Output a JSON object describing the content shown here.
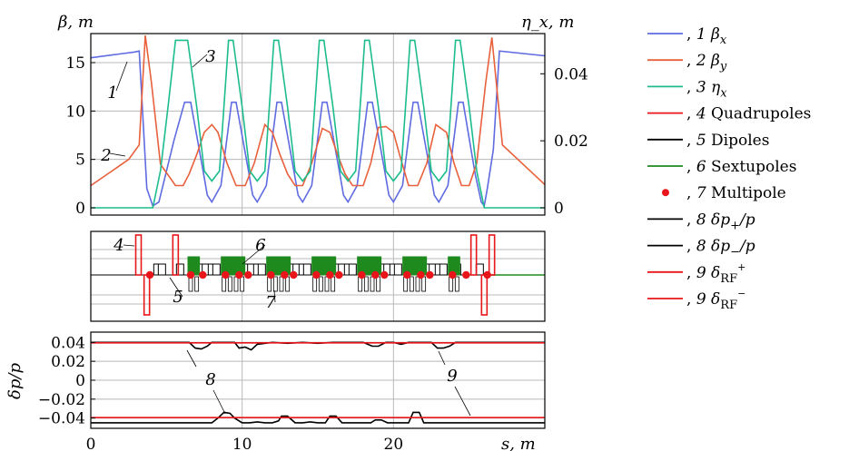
{
  "chart_data": [
    {
      "type": "line",
      "panel": "optics",
      "ylabel": "β, m",
      "y2label": "η_x, m",
      "xlim": [
        0,
        30
      ],
      "ylim": [
        0,
        18
      ],
      "y2lim": [
        0,
        0.052
      ],
      "yticks": [
        "0",
        "5",
        "10",
        "15"
      ],
      "y2ticks": [
        "0",
        "0.02",
        "0.04"
      ],
      "grid": true,
      "legend_position": "right",
      "annotations": [
        "1",
        "2",
        "3"
      ],
      "series": [
        {
          "name": "1 β_x",
          "legend_number": "1",
          "legend_symbol": "β",
          "legend_sub": "x",
          "color": "#5f6be0",
          "axis": "left",
          "x": [
            0,
            2.9,
            3.2,
            3.4,
            3.7,
            4.1,
            4.5,
            5.5,
            6.2,
            6.4,
            6.6,
            7.4,
            7.7,
            8.0,
            8.6,
            9.3,
            9.6,
            10.4,
            10.7,
            11.0,
            11.6,
            12.3,
            12.6,
            13.4,
            13.7,
            14.0,
            14.6,
            15.3,
            15.6,
            16.4,
            16.7,
            17.0,
            17.6,
            18.3,
            18.6,
            19.4,
            19.7,
            20.0,
            20.6,
            21.3,
            21.6,
            22.4,
            22.7,
            23.0,
            23.6,
            24.3,
            24.6,
            25.4,
            25.8,
            26.0,
            26.2,
            26.6,
            27.0,
            30
          ],
          "y": [
            15.5,
            16.1,
            16.2,
            10.5,
            2.0,
            0.2,
            0.6,
            7.0,
            10.9,
            10.9,
            10.9,
            4.0,
            1.3,
            0.6,
            2.3,
            10.9,
            10.9,
            4.0,
            1.3,
            0.6,
            2.3,
            10.9,
            10.9,
            4.0,
            1.3,
            0.6,
            2.3,
            10.9,
            10.9,
            4.0,
            1.3,
            0.6,
            2.3,
            10.9,
            10.9,
            4.0,
            1.3,
            0.6,
            2.3,
            10.9,
            10.9,
            4.0,
            1.3,
            0.6,
            2.3,
            10.9,
            10.9,
            3.5,
            0.6,
            0.2,
            2.0,
            6.0,
            16.2,
            15.7
          ]
        },
        {
          "name": "2 β_y",
          "legend_number": "2",
          "legend_symbol": "β",
          "legend_sub": "y",
          "color": "#e8603c",
          "axis": "left",
          "x": [
            0,
            2.5,
            3.2,
            3.6,
            4.0,
            4.6,
            5.6,
            6.1,
            6.5,
            7.0,
            7.5,
            8.0,
            8.4,
            9.0,
            9.6,
            10.2,
            10.8,
            11.5,
            12.0,
            12.5,
            13.0,
            13.5,
            14.0,
            14.6,
            15.3,
            15.8,
            16.3,
            16.8,
            17.3,
            18.0,
            18.5,
            19.0,
            19.5,
            20.0,
            20.4,
            21.0,
            21.6,
            22.2,
            22.8,
            23.5,
            24.0,
            24.5,
            25.0,
            25.5,
            26.1,
            26.5,
            27.2,
            30
          ],
          "y": [
            2.3,
            5.0,
            6.5,
            17.8,
            13.0,
            4.5,
            2.3,
            2.3,
            3.5,
            5.5,
            7.8,
            8.6,
            7.8,
            4.6,
            2.3,
            2.3,
            4.6,
            8.6,
            7.8,
            5.5,
            3.5,
            2.3,
            2.3,
            4.6,
            8.2,
            7.8,
            5.5,
            3.5,
            2.3,
            2.3,
            4.6,
            8.3,
            8.4,
            7.8,
            5.5,
            2.3,
            2.3,
            4.6,
            8.6,
            7.8,
            4.6,
            2.3,
            2.3,
            4.6,
            13.0,
            17.6,
            6.5,
            2.4
          ]
        },
        {
          "name": "3 η_x",
          "legend_number": "3",
          "legend_symbol": "η",
          "legend_sub": "x",
          "color": "#1cbc8c",
          "axis": "right",
          "x": [
            0,
            4.1,
            4.6,
            5.1,
            5.6,
            6.1,
            6.4,
            7.0,
            7.5,
            8.0,
            8.5,
            9.1,
            9.4,
            10.0,
            10.5,
            11.0,
            11.5,
            12.1,
            12.4,
            13.0,
            13.5,
            14.0,
            14.5,
            15.1,
            15.4,
            16.0,
            16.5,
            17.0,
            17.5,
            18.1,
            18.4,
            19.0,
            19.5,
            20.0,
            20.5,
            21.1,
            21.4,
            22.0,
            22.5,
            23.0,
            23.5,
            24.1,
            24.4,
            25.0,
            25.5,
            26.0,
            30
          ],
          "y": [
            0,
            0,
            0.011,
            0.03,
            0.05,
            0.05,
            0.05,
            0.03,
            0.011,
            0.008,
            0.011,
            0.05,
            0.05,
            0.03,
            0.011,
            0.008,
            0.011,
            0.05,
            0.05,
            0.03,
            0.011,
            0.008,
            0.011,
            0.05,
            0.05,
            0.03,
            0.011,
            0.008,
            0.011,
            0.05,
            0.05,
            0.03,
            0.011,
            0.008,
            0.011,
            0.05,
            0.05,
            0.03,
            0.011,
            0.008,
            0.011,
            0.05,
            0.05,
            0.03,
            0.011,
            0,
            0
          ]
        }
      ]
    },
    {
      "type": "lattice",
      "panel": "elements",
      "xlim": [
        0,
        30
      ],
      "annotations": [
        "4",
        "5",
        "6",
        "7"
      ],
      "legend": [
        {
          "number": "4",
          "label": "Quadrupoles",
          "color": "#e8161a"
        },
        {
          "number": "5",
          "label": "Dipoles",
          "color": "#000000"
        },
        {
          "number": "6",
          "label": "Sextupoles",
          "color": "#1e8a1e"
        },
        {
          "number": "7",
          "label": "Multipole",
          "color": "#e8161a",
          "marker": "dot"
        }
      ],
      "quadrupoles": [
        {
          "s": 3.15,
          "polarity": 1
        },
        {
          "s": 3.7,
          "polarity": -1
        },
        {
          "s": 5.6,
          "polarity": 1
        },
        {
          "s": 25.3,
          "polarity": 1
        },
        {
          "s": 26.5,
          "polarity": 1
        },
        {
          "s": 26.0,
          "polarity": -1
        }
      ],
      "dipoles": [
        4.4,
        4.7,
        5.9,
        7.0,
        7.3,
        7.6,
        8.0,
        8.3,
        10.0,
        10.3,
        10.6,
        11.0,
        11.3,
        12.1,
        13.0,
        13.3,
        13.6,
        14.0,
        14.3,
        15.2,
        16.0,
        16.3,
        16.6,
        17.0,
        17.3,
        18.2,
        19.0,
        19.3,
        19.6,
        20.0,
        20.3,
        21.2,
        22.0,
        22.3,
        22.6,
        23.0,
        23.3,
        24.2,
        25.7
      ],
      "sextupoles": [
        6.6,
        7.0,
        8.8,
        9.2,
        9.6,
        10.0,
        11.8,
        12.2,
        12.6,
        13.0,
        14.8,
        15.2,
        15.6,
        16.0,
        17.8,
        18.2,
        18.6,
        19.0,
        20.8,
        21.2,
        21.6,
        22.0,
        23.8,
        24.2
      ],
      "multipoles": [
        3.9,
        6.6,
        7.4,
        8.9,
        9.8,
        10.4,
        11.9,
        12.8,
        13.4,
        14.9,
        15.8,
        16.4,
        17.9,
        18.8,
        19.4,
        20.9,
        21.8,
        22.4,
        23.9,
        24.8,
        26.2
      ]
    },
    {
      "type": "line",
      "panel": "acceptance",
      "xlabel": "s, m",
      "ylabel": "δp/p",
      "xlim": [
        0,
        30
      ],
      "ylim": [
        -0.047,
        0.047
      ],
      "xticks": [
        "0",
        "10",
        "20"
      ],
      "yticks": [
        "0.04",
        "0.02",
        "0",
        "−0.02",
        "−0.04"
      ],
      "grid": true,
      "annotations": [
        "8",
        "9"
      ],
      "series": [
        {
          "name": "8 δp+/p",
          "legend_number": "8",
          "legend_symbol": "δp",
          "legend_sub": "+",
          "legend_tail": "/p",
          "color": "#000000",
          "x": [
            0,
            6.5,
            6.9,
            7.3,
            7.7,
            8.0,
            9.0,
            9.5,
            9.8,
            10.2,
            10.6,
            11.0,
            12.0,
            13.0,
            14.0,
            15.0,
            16.0,
            17.0,
            18.0,
            18.6,
            19.0,
            19.5,
            20.0,
            20.5,
            21.0,
            22.0,
            22.5,
            22.9,
            23.3,
            23.7,
            24.1,
            30
          ],
          "y": [
            0.04,
            0.04,
            0.034,
            0.033,
            0.036,
            0.04,
            0.04,
            0.04,
            0.034,
            0.035,
            0.032,
            0.038,
            0.04,
            0.039,
            0.04,
            0.039,
            0.04,
            0.04,
            0.04,
            0.036,
            0.036,
            0.04,
            0.04,
            0.038,
            0.04,
            0.04,
            0.04,
            0.034,
            0.034,
            0.036,
            0.04,
            0.04
          ]
        },
        {
          "name": "8 δp−/p",
          "legend_number": "8",
          "legend_symbol": "δp",
          "legend_sub": "−",
          "legend_tail": "/p",
          "color": "#000000",
          "x": [
            0,
            8.0,
            8.4,
            8.8,
            9.2,
            9.5,
            10.0,
            10.5,
            11.0,
            11.5,
            12.0,
            12.4,
            12.6,
            13.0,
            13.5,
            14.0,
            14.5,
            15.0,
            15.5,
            15.8,
            16.2,
            16.6,
            17.0,
            17.5,
            18.0,
            18.5,
            18.8,
            19.2,
            19.6,
            20.0,
            20.5,
            21.0,
            21.3,
            21.7,
            22.0,
            30
          ],
          "y": [
            -0.045,
            -0.045,
            -0.04,
            -0.034,
            -0.035,
            -0.04,
            -0.045,
            -0.045,
            -0.044,
            -0.045,
            -0.045,
            -0.043,
            -0.038,
            -0.038,
            -0.045,
            -0.045,
            -0.044,
            -0.045,
            -0.045,
            -0.038,
            -0.038,
            -0.045,
            -0.045,
            -0.045,
            -0.045,
            -0.045,
            -0.042,
            -0.042,
            -0.045,
            -0.045,
            -0.045,
            -0.045,
            -0.034,
            -0.034,
            -0.045,
            -0.045
          ]
        },
        {
          "name": "9 δRF+",
          "legend_number": "9",
          "legend_symbol": "δ",
          "legend_sub": "RF",
          "legend_sup": "+",
          "color": "#e8161a",
          "x": [
            0,
            30
          ],
          "y": [
            0.0395,
            0.0395
          ]
        },
        {
          "name": "9 δRF−",
          "legend_number": "9",
          "legend_symbol": "δ",
          "legend_sub": "RF",
          "legend_sup": "−",
          "color": "#e8161a",
          "x": [
            0,
            30
          ],
          "y": [
            -0.0395,
            -0.0395
          ]
        }
      ]
    }
  ]
}
